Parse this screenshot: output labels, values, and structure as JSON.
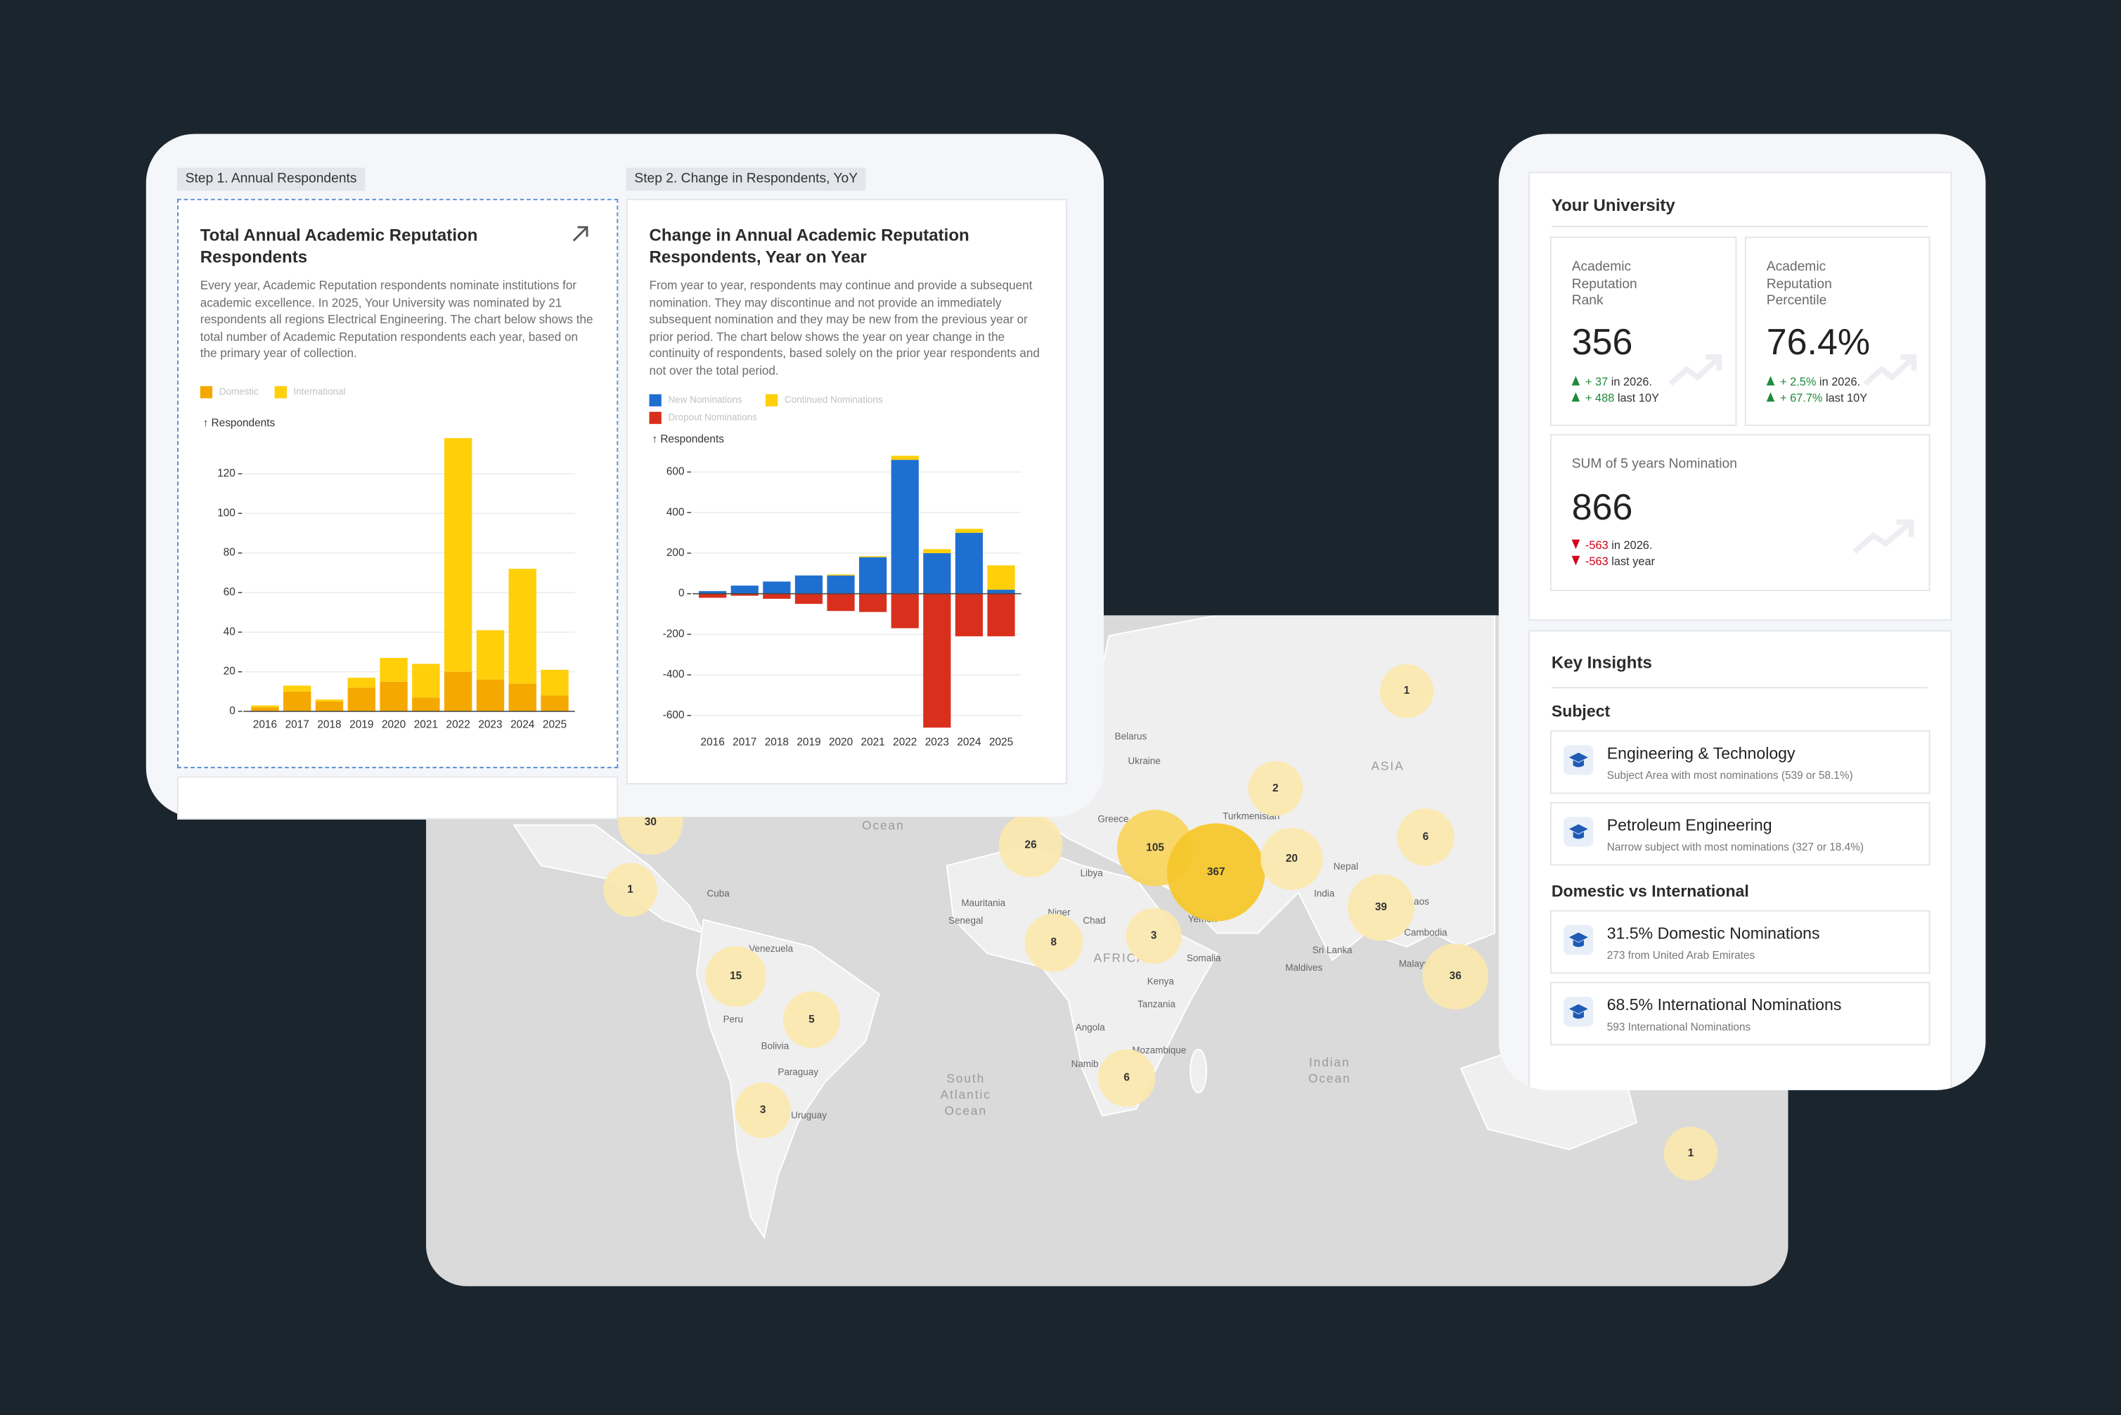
{
  "steps": [
    "Step 1. Annual Respondents",
    "Step 2. Change in Respondents, YoY"
  ],
  "chart_data": [
    {
      "type": "bar",
      "stacked": true,
      "title": "Total Annual Academic Reputation Respondents",
      "description": "Every year, Academic Reputation respondents nominate institutions for academic excellence. In 2025, Your University was nominated by 21 respondents all regions Electrical Engineering. The chart below shows the total number of Academic Reputation respondents each year, based on the primary year of collection.",
      "y_label": "↑ Respondents",
      "categories": [
        "2016",
        "2017",
        "2018",
        "2019",
        "2020",
        "2021",
        "2022",
        "2023",
        "2024",
        "2025"
      ],
      "series": [
        {
          "name": "Domestic",
          "color": "#f5a800",
          "values": [
            2,
            10,
            5,
            12,
            15,
            7,
            20,
            16,
            14,
            8
          ]
        },
        {
          "name": "International",
          "color": "#ffcf0a",
          "values": [
            1,
            3,
            1,
            5,
            12,
            17,
            118,
            25,
            58,
            13
          ]
        }
      ],
      "ylim": [
        0,
        140
      ],
      "yticks": [
        0,
        20,
        40,
        60,
        80,
        100,
        120
      ],
      "grid": true
    },
    {
      "type": "bar",
      "stacked": true,
      "title": "Change in Annual Academic Reputation Respondents, Year on Year",
      "description": "From year to year, respondents may continue and provide a subsequent nomination. They may discontinue and not provide an immediately subsequent nomination and they may be new from the previous year or prior period. The chart below shows the year on year change in the continuity of respondents, based solely on the prior year respondents and not over the total period.",
      "y_label": "↑ Respondents",
      "categories": [
        "2016",
        "2017",
        "2018",
        "2019",
        "2020",
        "2021",
        "2022",
        "2023",
        "2024",
        "2025"
      ],
      "series": [
        {
          "name": "New Nominations",
          "color": "#1f6fd0",
          "values": [
            13,
            40,
            60,
            90,
            90,
            180,
            660,
            200,
            300,
            20
          ]
        },
        {
          "name": "Continued Nominations",
          "color": "#ffcf0a",
          "values": [
            0,
            0,
            0,
            0,
            5,
            5,
            20,
            20,
            20,
            120
          ]
        },
        {
          "name": "Dropout Nominations",
          "color": "#d9301e",
          "values": [
            -20,
            -10,
            -25,
            -50,
            -85,
            -90,
            -170,
            -660,
            -210,
            -210
          ]
        }
      ],
      "ylim": [
        -700,
        700
      ],
      "yticks": [
        -600,
        -400,
        -200,
        0,
        200,
        400,
        600
      ],
      "grid": true
    }
  ],
  "university": {
    "title": "Your University",
    "kpis": [
      {
        "label": "Academic Reputation Rank",
        "value": "356",
        "changes": [
          {
            "direction": "up",
            "delta": "+ 37",
            "note": "in 2026."
          },
          {
            "direction": "up",
            "delta": "+ 488",
            "note": "last 10Y"
          }
        ]
      },
      {
        "label": "Academic Reputation Percentile",
        "value": "76.4%",
        "changes": [
          {
            "direction": "up",
            "delta": "+ 2.5%",
            "note": "in 2026."
          },
          {
            "direction": "up",
            "delta": "+ 67.7%",
            "note": "last 10Y"
          }
        ]
      },
      {
        "label": "SUM of 5 years Nomination",
        "value": "866",
        "changes": [
          {
            "direction": "down",
            "delta": "-563",
            "note": "in 2026."
          },
          {
            "direction": "down",
            "delta": "-563",
            "note": "last year"
          }
        ]
      }
    ]
  },
  "insights": {
    "title": "Key Insights",
    "groups": [
      {
        "title": "Subject",
        "items": [
          {
            "title": "Engineering & Technology",
            "subtitle": "Subject Area with most nominations (539 or 58.1%)"
          },
          {
            "title": "Petroleum Engineering",
            "subtitle": "Narrow subject with most nominations (327 or 18.4%)"
          }
        ]
      },
      {
        "title": "Domestic vs International",
        "items": [
          {
            "title": "31.5% Domestic Nominations",
            "subtitle": "273 from United Arab Emirates"
          },
          {
            "title": "68.5% International Nominations",
            "subtitle": "593 International Nominations"
          }
        ]
      }
    ]
  },
  "map": {
    "bubbles": [
      30,
      1,
      26,
      105,
      367,
      20,
      2,
      1,
      6,
      39,
      36,
      8,
      3,
      15,
      5,
      6,
      3,
      1
    ],
    "labels": [
      "Belarus",
      "Ukraine",
      "Greece",
      "Turkmenistan",
      "Libya",
      "Mauritania",
      "Senegal",
      "Niger",
      "Chad",
      "AFRICA",
      "Somalia",
      "Kenya",
      "Tanzania",
      "Angola",
      "Mozambique",
      "Namib",
      "Yemen",
      "Nepal",
      "India",
      "Laos",
      "Cambodia",
      "Sri Lanka",
      "Maldives",
      "Malaysi",
      "ASIA",
      "Cuba",
      "Venezuela",
      "Peru",
      "Bolivia",
      "Paraguay",
      "Uruguay",
      "Ocean",
      "South",
      "Atlantic",
      "Ocean",
      "Indian",
      "Ocean"
    ]
  }
}
